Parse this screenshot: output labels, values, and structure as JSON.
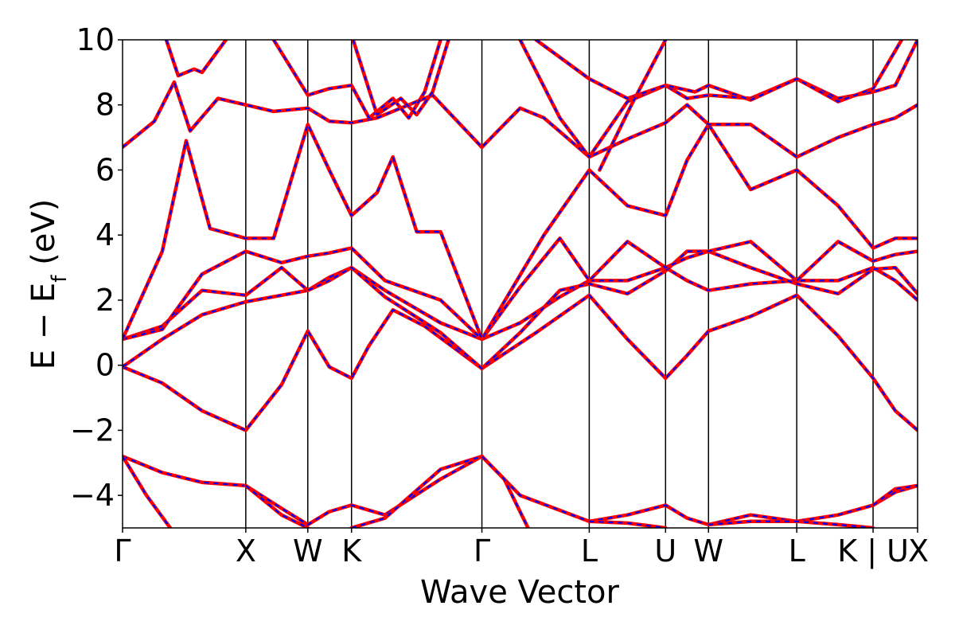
{
  "chart_data": {
    "type": "line",
    "title": "",
    "xlabel": "Wave Vector",
    "ylabel_parts": [
      "E − E",
      "f",
      " (eV)"
    ],
    "ylim": [
      -5,
      10
    ],
    "yticks": [
      10,
      8,
      6,
      4,
      2,
      0,
      -2,
      -4
    ],
    "yticklabels": [
      "10",
      "8",
      "6",
      "4",
      "2",
      "0",
      "−2",
      "−4"
    ],
    "xticks": [
      0,
      0.155,
      0.233,
      0.288,
      0.452,
      0.587,
      0.683,
      0.737,
      0.848,
      0.944,
      1.0
    ],
    "xticklabels": [
      "Γ",
      "X",
      "W",
      "K",
      "Γ",
      "L",
      "U",
      "W",
      "L",
      "K | U",
      "X"
    ],
    "xlim": [
      0,
      1
    ],
    "grid": false,
    "legend": "none",
    "colors": {
      "series_a": "#ff0000",
      "series_b": "#0000ff"
    },
    "series": [
      {
        "points": [
          [
            0,
            -0.05
          ],
          [
            0.05,
            -0.55
          ],
          [
            0.1,
            -1.4
          ],
          [
            0.155,
            -2.0
          ],
          [
            0.2,
            -0.6
          ],
          [
            0.233,
            1.05
          ],
          [
            0.26,
            -0.05
          ],
          [
            0.288,
            -0.4
          ],
          [
            0.31,
            0.6
          ],
          [
            0.34,
            1.7
          ],
          [
            0.38,
            1.2
          ],
          [
            0.452,
            -0.1
          ],
          [
            0.52,
            1.0
          ],
          [
            0.587,
            2.15
          ],
          [
            0.635,
            0.8
          ],
          [
            0.683,
            -0.4
          ],
          [
            0.71,
            0.3
          ],
          [
            0.737,
            1.05
          ],
          [
            0.79,
            1.5
          ],
          [
            0.848,
            2.15
          ],
          [
            0.9,
            0.9
          ],
          [
            0.944,
            -0.4
          ],
          [
            0.972,
            -1.4
          ],
          [
            1.0,
            -2.0
          ]
        ]
      },
      {
        "points": [
          [
            0,
            -0.05
          ],
          [
            0.05,
            0.8
          ],
          [
            0.1,
            1.55
          ],
          [
            0.155,
            1.95
          ],
          [
            0.2,
            2.15
          ],
          [
            0.233,
            2.3
          ],
          [
            0.26,
            2.7
          ],
          [
            0.288,
            3.0
          ],
          [
            0.33,
            2.3
          ],
          [
            0.4,
            1.3
          ],
          [
            0.452,
            0.8
          ],
          [
            0.5,
            1.3
          ],
          [
            0.55,
            2.1
          ],
          [
            0.587,
            2.6
          ],
          [
            0.635,
            2.6
          ],
          [
            0.683,
            3.0
          ],
          [
            0.71,
            2.6
          ],
          [
            0.737,
            2.3
          ],
          [
            0.79,
            2.5
          ],
          [
            0.848,
            2.6
          ],
          [
            0.9,
            2.6
          ],
          [
            0.944,
            3.0
          ],
          [
            0.972,
            2.6
          ],
          [
            1.0,
            2.0
          ]
        ]
      },
      {
        "points": [
          [
            0,
            0.8
          ],
          [
            0.05,
            1.2
          ],
          [
            0.1,
            2.3
          ],
          [
            0.155,
            2.15
          ],
          [
            0.2,
            3.0
          ],
          [
            0.233,
            2.3
          ],
          [
            0.26,
            2.6
          ],
          [
            0.288,
            3.0
          ],
          [
            0.33,
            2.1
          ],
          [
            0.4,
            1.0
          ],
          [
            0.452,
            -0.1
          ],
          [
            0.5,
            1.0
          ],
          [
            0.55,
            2.3
          ],
          [
            0.587,
            2.5
          ],
          [
            0.635,
            2.2
          ],
          [
            0.683,
            2.9
          ],
          [
            0.71,
            3.5
          ],
          [
            0.737,
            3.5
          ],
          [
            0.79,
            3.0
          ],
          [
            0.848,
            2.5
          ],
          [
            0.9,
            2.2
          ],
          [
            0.944,
            2.95
          ],
          [
            0.972,
            3.0
          ],
          [
            1.0,
            2.2
          ]
        ]
      },
      {
        "points": [
          [
            0,
            0.8
          ],
          [
            0.05,
            1.1
          ],
          [
            0.1,
            2.8
          ],
          [
            0.155,
            3.5
          ],
          [
            0.2,
            3.15
          ],
          [
            0.233,
            3.35
          ],
          [
            0.26,
            3.45
          ],
          [
            0.288,
            3.6
          ],
          [
            0.33,
            2.6
          ],
          [
            0.4,
            2.0
          ],
          [
            0.452,
            0.8
          ],
          [
            0.5,
            2.4
          ],
          [
            0.55,
            3.9
          ],
          [
            0.587,
            2.6
          ],
          [
            0.635,
            3.8
          ],
          [
            0.683,
            3.0
          ],
          [
            0.71,
            3.3
          ],
          [
            0.737,
            3.5
          ],
          [
            0.79,
            3.8
          ],
          [
            0.848,
            2.6
          ],
          [
            0.9,
            3.8
          ],
          [
            0.944,
            3.2
          ],
          [
            0.972,
            3.4
          ],
          [
            1.0,
            3.5
          ]
        ]
      },
      {
        "points": [
          [
            0,
            0.8
          ],
          [
            0.05,
            3.5
          ],
          [
            0.08,
            6.9
          ],
          [
            0.11,
            4.2
          ],
          [
            0.155,
            3.9
          ],
          [
            0.19,
            3.9
          ],
          [
            0.233,
            7.4
          ],
          [
            0.26,
            6.0
          ],
          [
            0.288,
            4.6
          ],
          [
            0.32,
            5.3
          ],
          [
            0.34,
            6.4
          ],
          [
            0.37,
            4.1
          ],
          [
            0.4,
            4.1
          ],
          [
            0.452,
            0.8
          ],
          [
            0.53,
            4.0
          ],
          [
            0.587,
            6.0
          ],
          [
            0.635,
            4.9
          ],
          [
            0.683,
            4.6
          ],
          [
            0.71,
            6.3
          ],
          [
            0.737,
            7.4
          ],
          [
            0.79,
            5.4
          ],
          [
            0.848,
            6.0
          ],
          [
            0.9,
            4.9
          ],
          [
            0.944,
            3.6
          ],
          [
            0.972,
            3.9
          ],
          [
            1.0,
            3.9
          ]
        ]
      },
      {
        "points": [
          [
            0,
            6.7
          ],
          [
            0.04,
            7.5
          ],
          [
            0.065,
            8.7
          ],
          [
            0.085,
            7.2
          ],
          [
            0.12,
            8.2
          ],
          [
            0.155,
            8.0
          ],
          [
            0.19,
            7.8
          ],
          [
            0.233,
            7.9
          ],
          [
            0.26,
            7.5
          ],
          [
            0.288,
            7.45
          ],
          [
            0.32,
            7.6
          ],
          [
            0.35,
            7.9
          ],
          [
            0.39,
            8.3
          ],
          [
            0.452,
            6.7
          ],
          [
            0.5,
            7.9
          ],
          [
            0.53,
            7.6
          ],
          [
            0.587,
            6.4
          ],
          [
            0.635,
            6.95
          ],
          [
            0.683,
            7.45
          ],
          [
            0.71,
            8.0
          ],
          [
            0.737,
            7.4
          ],
          [
            0.79,
            7.4
          ],
          [
            0.848,
            6.4
          ],
          [
            0.9,
            7.0
          ],
          [
            0.944,
            7.4
          ],
          [
            0.972,
            7.6
          ],
          [
            1.0,
            8.0
          ]
        ]
      },
      {
        "points": [
          [
            0.055,
            10.0
          ],
          [
            0.07,
            8.9
          ],
          [
            0.09,
            9.1
          ],
          [
            0.1,
            9.0
          ],
          [
            0.13,
            10.0
          ]
        ]
      },
      {
        "points": [
          [
            0.19,
            10.0
          ],
          [
            0.233,
            8.3
          ],
          [
            0.26,
            8.5
          ],
          [
            0.288,
            8.6
          ],
          [
            0.31,
            7.6
          ],
          [
            0.34,
            8.2
          ],
          [
            0.36,
            7.6
          ],
          [
            0.38,
            8.4
          ],
          [
            0.4,
            10.0
          ]
        ]
      },
      {
        "points": [
          [
            0.5,
            10.0
          ],
          [
            0.55,
            7.6
          ],
          [
            0.587,
            6.4
          ],
          [
            0.635,
            8.1
          ],
          [
            0.683,
            8.6
          ],
          [
            0.71,
            8.2
          ],
          [
            0.737,
            8.3
          ],
          [
            0.79,
            8.2
          ],
          [
            0.848,
            8.8
          ],
          [
            0.9,
            8.2
          ],
          [
            0.944,
            8.4
          ],
          [
            0.972,
            8.6
          ],
          [
            1.0,
            10.0
          ]
        ]
      },
      {
        "points": [
          [
            0.29,
            10.0
          ],
          [
            0.32,
            7.7
          ],
          [
            0.35,
            8.2
          ],
          [
            0.37,
            7.7
          ],
          [
            0.39,
            8.4
          ],
          [
            0.41,
            10.0
          ]
        ]
      },
      {
        "points": [
          [
            0.52,
            10.0
          ],
          [
            0.587,
            8.8
          ],
          [
            0.635,
            8.2
          ],
          [
            0.683,
            8.6
          ],
          [
            0.72,
            8.4
          ],
          [
            0.737,
            8.6
          ],
          [
            0.79,
            8.15
          ],
          [
            0.848,
            8.8
          ],
          [
            0.9,
            8.1
          ],
          [
            0.944,
            8.5
          ],
          [
            0.98,
            10.0
          ]
        ]
      },
      {
        "points": [
          [
            0.6,
            6.0
          ],
          [
            0.64,
            8.0
          ],
          [
            0.683,
            10.0
          ]
        ]
      },
      {
        "points": [
          [
            0,
            -2.8
          ],
          [
            0.05,
            -3.3
          ],
          [
            0.1,
            -3.6
          ],
          [
            0.155,
            -3.7
          ],
          [
            0.2,
            -4.4
          ],
          [
            0.233,
            -4.9
          ],
          [
            0.26,
            -4.5
          ],
          [
            0.288,
            -4.3
          ],
          [
            0.33,
            -4.6
          ],
          [
            0.4,
            -3.5
          ],
          [
            0.452,
            -2.8
          ],
          [
            0.5,
            -4.0
          ],
          [
            0.587,
            -4.8
          ],
          [
            0.635,
            -4.6
          ],
          [
            0.683,
            -4.3
          ],
          [
            0.71,
            -4.7
          ],
          [
            0.737,
            -4.9
          ],
          [
            0.79,
            -4.6
          ],
          [
            0.848,
            -4.8
          ],
          [
            0.9,
            -4.6
          ],
          [
            0.944,
            -4.3
          ],
          [
            0.972,
            -3.9
          ],
          [
            1.0,
            -3.7
          ]
        ]
      },
      {
        "points": [
          [
            0,
            -2.8
          ],
          [
            0.03,
            -4.0
          ],
          [
            0.06,
            -5.0
          ]
        ]
      },
      {
        "points": [
          [
            0.155,
            -3.7
          ],
          [
            0.2,
            -4.6
          ],
          [
            0.233,
            -5.0
          ]
        ]
      },
      {
        "points": [
          [
            0.288,
            -5.0
          ],
          [
            0.33,
            -4.7
          ],
          [
            0.4,
            -3.2
          ],
          [
            0.452,
            -2.8
          ],
          [
            0.48,
            -3.5
          ],
          [
            0.51,
            -5.0
          ]
        ]
      },
      {
        "points": [
          [
            0.587,
            -4.8
          ],
          [
            0.635,
            -4.85
          ],
          [
            0.683,
            -5.0
          ]
        ]
      },
      {
        "points": [
          [
            0.737,
            -4.9
          ],
          [
            0.79,
            -4.8
          ],
          [
            0.848,
            -4.8
          ],
          [
            0.9,
            -4.9
          ],
          [
            0.944,
            -5.0
          ]
        ]
      },
      {
        "points": [
          [
            0.944,
            -4.3
          ],
          [
            0.972,
            -3.8
          ],
          [
            1.0,
            -3.7
          ]
        ]
      }
    ]
  }
}
